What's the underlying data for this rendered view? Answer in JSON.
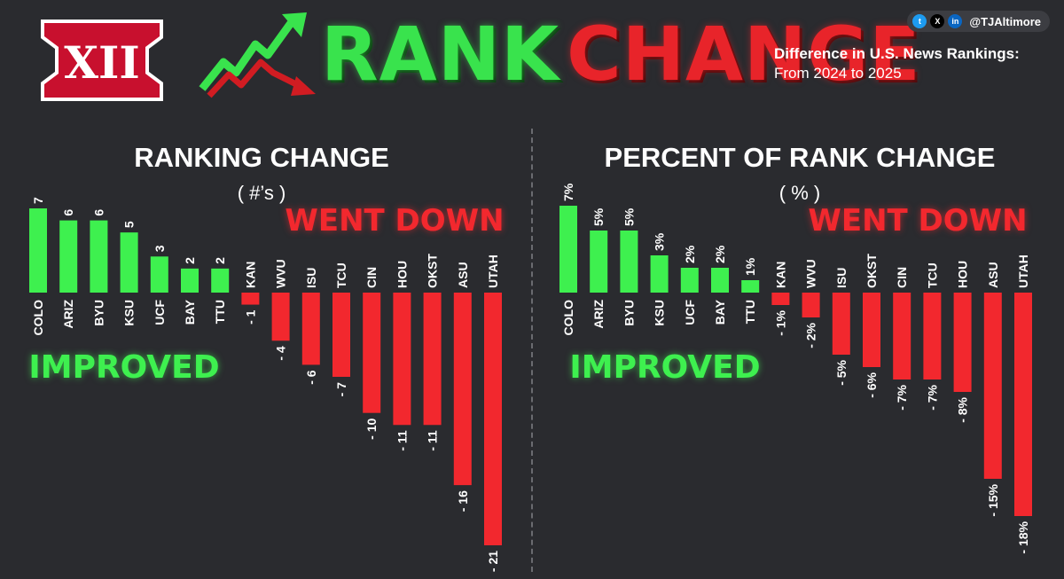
{
  "header": {
    "logo_text": "XII",
    "title_part1": "RANK",
    "title_part2": "CHANGE",
    "subtitle_line1": "Difference in U.S. News Rankings:",
    "subtitle_line2": "From 2024 to 2025",
    "social_handle": "@TJAltimore",
    "social_icons": [
      "twitter-icon",
      "x-icon",
      "linkedin-icon"
    ]
  },
  "colors": {
    "background": "#2a2b2f",
    "positive": "#3ef04f",
    "negative": "#f2282e",
    "logo_red": "#c8102e"
  },
  "chart_data": [
    {
      "type": "bar",
      "title": "RANKING CHANGE",
      "subtitle": "( #’s )",
      "positive_label": "IMPROVED",
      "negative_label": "WENT DOWN",
      "categories": [
        "COLO",
        "ARIZ",
        "BYU",
        "KSU",
        "UCF",
        "BAY",
        "TTU",
        "KAN",
        "WVU",
        "ISU",
        "TCU",
        "CIN",
        "HOU",
        "OKST",
        "ASU",
        "UTAH"
      ],
      "values": [
        7,
        6,
        6,
        5,
        3,
        2,
        2,
        -1,
        -4,
        -6,
        -7,
        -10,
        -11,
        -11,
        -16,
        -21
      ],
      "value_labels": [
        "7",
        "6",
        "6",
        "5",
        "3",
        "2",
        "2",
        "- 1",
        "- 4",
        "- 6",
        "- 7",
        "- 10",
        "- 11",
        "- 11",
        "- 16",
        "- 21"
      ],
      "ylim": [
        -21,
        7
      ],
      "grid": false
    },
    {
      "type": "bar",
      "title": "PERCENT OF RANK CHANGE",
      "subtitle": "( % )",
      "positive_label": "IMPROVED",
      "negative_label": "WENT DOWN",
      "categories": [
        "COLO",
        "ARIZ",
        "BYU",
        "KSU",
        "UCF",
        "BAY",
        "TTU",
        "KAN",
        "WVU",
        "ISU",
        "OKST",
        "CIN",
        "TCU",
        "HOU",
        "ASU",
        "UTAH"
      ],
      "values": [
        7,
        5,
        5,
        3,
        2,
        2,
        1,
        -1,
        -2,
        -5,
        -6,
        -7,
        -7,
        -8,
        -15,
        -18
      ],
      "value_labels": [
        "7%",
        "5%",
        "5%",
        "3%",
        "2%",
        "2%",
        "1%",
        "- 1%",
        "- 2%",
        "- 5%",
        "- 6%",
        "- 7%",
        "- 7%",
        "- 8%",
        "- 15%",
        "- 18%"
      ],
      "ylim": [
        -18,
        7
      ],
      "grid": false
    }
  ]
}
